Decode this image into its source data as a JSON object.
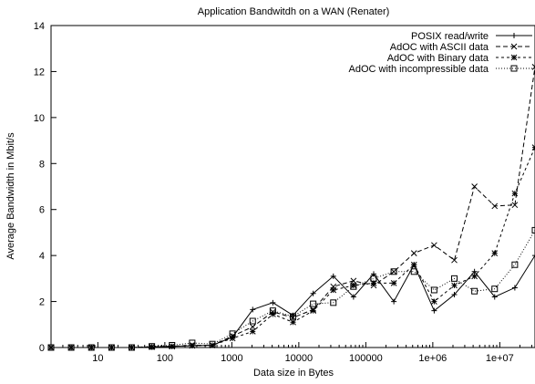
{
  "chart_data": {
    "type": "line",
    "title": "Application Bandwitdh on a WAN (Renater)",
    "xlabel": "Data size in Bytes",
    "ylabel": "Average Bandwidth in Mbit/s",
    "x_scale": "log2",
    "xlim": [
      2,
      33554432
    ],
    "ylim": [
      0,
      14
    ],
    "x_ticks": [
      10,
      100,
      1000,
      10000,
      100000,
      1000000,
      10000000
    ],
    "x_tick_labels": [
      "10",
      "100",
      "1000",
      "10000",
      "100000",
      "1e+06",
      "1e+07"
    ],
    "y_ticks": [
      0,
      2,
      4,
      6,
      8,
      10,
      12,
      14
    ],
    "y_tick_labels": [
      "0",
      "2",
      "4",
      "6",
      "8",
      "10",
      "12",
      "14"
    ],
    "legend_position": "top-right",
    "x": [
      2,
      4,
      8,
      16,
      32,
      64,
      128,
      256,
      512,
      1024,
      2048,
      4096,
      8192,
      16384,
      32768,
      65536,
      131072,
      262144,
      524288,
      1048576,
      2097152,
      4194304,
      8388608,
      16777216,
      33554432
    ],
    "series": [
      {
        "name": "POSIX read/write",
        "marker": "plus",
        "dash": "",
        "values": [
          0,
          0,
          0,
          0,
          0,
          0.02,
          0.05,
          0.08,
          0.1,
          0.45,
          1.65,
          1.95,
          1.4,
          2.35,
          3.1,
          2.2,
          3.2,
          2.0,
          3.6,
          1.6,
          2.3,
          3.3,
          2.2,
          2.6,
          4.0
        ]
      },
      {
        "name": "AdOC with ASCII data",
        "marker": "x",
        "dash": "5,3",
        "values": [
          0,
          0,
          0,
          0,
          0,
          0.03,
          0.05,
          0.1,
          0.1,
          0.5,
          0.9,
          1.55,
          1.3,
          1.65,
          2.65,
          2.9,
          2.7,
          3.3,
          4.1,
          4.45,
          3.8,
          7.0,
          6.15,
          6.2,
          12.2
        ]
      },
      {
        "name": "AdOC with Binary data",
        "marker": "star",
        "dash": "3,3",
        "values": [
          0,
          0,
          0,
          0,
          0,
          0.03,
          0.05,
          0.08,
          0.1,
          0.4,
          0.7,
          1.45,
          1.1,
          1.6,
          2.5,
          2.7,
          2.8,
          2.8,
          3.6,
          2.0,
          2.7,
          3.1,
          4.1,
          6.7,
          8.7
        ]
      },
      {
        "name": "AdOC with incompressible data",
        "marker": "square",
        "dash": "1,2",
        "values": [
          0,
          0,
          0,
          0,
          0,
          0.05,
          0.1,
          0.2,
          0.15,
          0.6,
          1.15,
          1.6,
          1.35,
          1.9,
          1.95,
          2.65,
          3.0,
          3.3,
          3.3,
          2.5,
          3.0,
          2.45,
          2.55,
          3.6,
          5.1
        ]
      }
    ]
  }
}
